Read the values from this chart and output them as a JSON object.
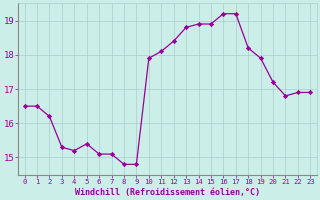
{
  "x": [
    0,
    1,
    2,
    3,
    4,
    5,
    6,
    7,
    8,
    9,
    10,
    11,
    12,
    13,
    14,
    15,
    16,
    17,
    18,
    19,
    20,
    21,
    22,
    23
  ],
  "y": [
    16.5,
    16.5,
    16.2,
    15.3,
    15.2,
    15.4,
    15.1,
    15.1,
    14.8,
    14.8,
    17.9,
    18.1,
    18.4,
    18.8,
    18.9,
    18.9,
    19.2,
    19.2,
    18.2,
    17.9,
    17.2,
    16.8,
    16.9,
    16.9
  ],
  "line_color": "#990099",
  "marker_color": "#990099",
  "bg_color": "#cceee8",
  "grid_color": "#aacccc",
  "axis_color": "#990099",
  "xlabel": "Windchill (Refroidissement éolien,°C)",
  "ylim": [
    14.5,
    19.5
  ],
  "xlim": [
    -0.5,
    23.5
  ],
  "yticks": [
    15,
    16,
    17,
    18,
    19
  ],
  "xticks": [
    0,
    1,
    2,
    3,
    4,
    5,
    6,
    7,
    8,
    9,
    10,
    11,
    12,
    13,
    14,
    15,
    16,
    17,
    18,
    19,
    20,
    21,
    22,
    23
  ],
  "xlabel_fontsize": 6.0,
  "ytick_fontsize": 6.5,
  "xtick_fontsize": 5.2
}
